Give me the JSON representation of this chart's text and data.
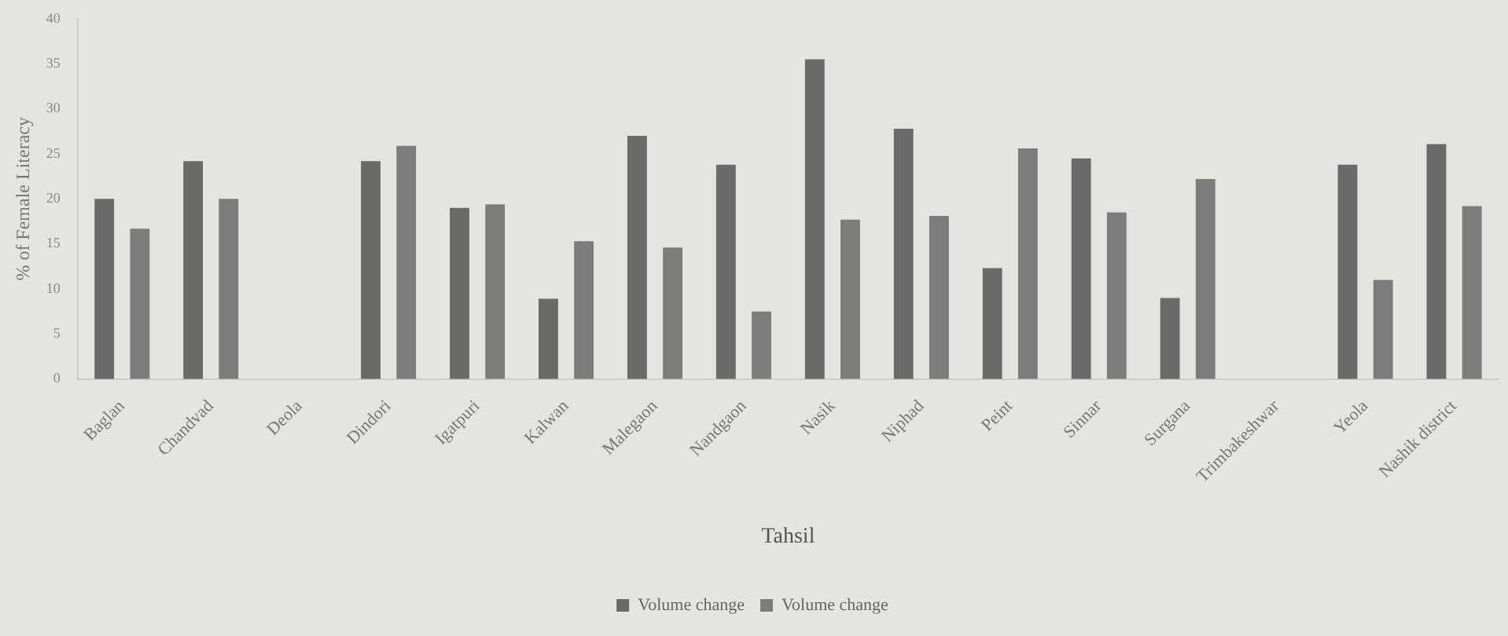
{
  "chart_data": {
    "type": "bar",
    "xlabel": "Tahsil",
    "ylabel": "% of Female Literacy",
    "categories": [
      "Baglan",
      "Chandvad",
      "Deola",
      "Dindori",
      "Igatpuri",
      "Kalwan",
      "Malegaon",
      "Nandgaon",
      "Nasik",
      "Niphad",
      "Peint",
      "Sinnar",
      "Surgana",
      "Trimbakeshwar",
      "Yeola",
      "Nashik district"
    ],
    "series": [
      {
        "name": "Volume change",
        "color": "#6a6a6a",
        "values": [
          20,
          24.2,
          null,
          24.2,
          19,
          8.9,
          27,
          23.8,
          35.5,
          27.8,
          12.3,
          24.5,
          9,
          null,
          23.8,
          26.1
        ]
      },
      {
        "name": "Volume change",
        "color": "#7c7c7c",
        "values": [
          16.7,
          20,
          null,
          25.9,
          19.4,
          15.3,
          14.6,
          7.5,
          17.7,
          18.1,
          25.6,
          18.5,
          22.2,
          null,
          11,
          19.2
        ]
      }
    ],
    "ylim": [
      0,
      40
    ],
    "yticks": [
      0,
      5,
      10,
      15,
      20,
      25,
      30,
      35,
      40
    ],
    "grid": false,
    "legend": "bottom"
  }
}
